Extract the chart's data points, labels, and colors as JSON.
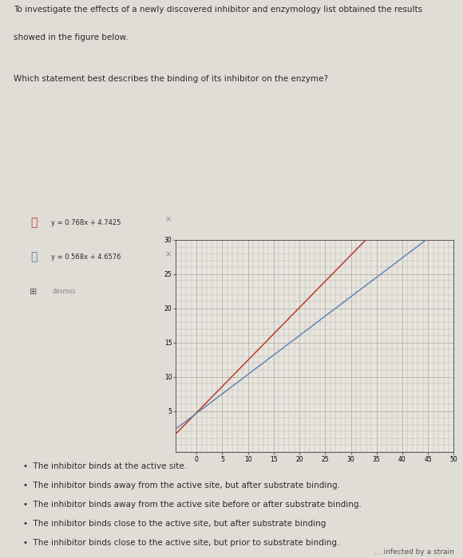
{
  "line1_label": "y = 0.768x + 4.7425",
  "line1_slope": 0.768,
  "line1_intercept": 4.7425,
  "line1_color": "#c0392b",
  "line2_label": "y = 0.568x + 4.6576",
  "line2_slope": 0.568,
  "line2_intercept": 4.6576,
  "line2_color": "#6688aa",
  "x_min": -4,
  "x_max": 50,
  "y_min": -1,
  "y_max": 30,
  "x_ticks": [
    0,
    5,
    10,
    15,
    20,
    25,
    30,
    35,
    40,
    45,
    50
  ],
  "y_ticks": [
    5,
    10,
    15,
    20,
    25,
    30
  ],
  "chart_bg": "#e8e5df",
  "grid_color": "#aaa8a0",
  "title_text1": "To investigate the effects of a newly discovered inhibitor and enzymology list obtained the results",
  "title_text2": "showed in the figure below.",
  "question_text": "Which statement best describes the binding of its inhibitor on the enzyme?",
  "bullet_points": [
    "The inhibitor binds at the active site.",
    "The inhibitor binds away from the active site, but after substrate binding.",
    "The inhibitor binds away from the active site before or after substrate binding.",
    "The inhibitor binds close to the active site, but after substrate binding",
    "The inhibitor binds close to the active site, but prior to substrate binding."
  ],
  "legend_bg": "#dedad2",
  "legend_icon1_color": "#c0392b",
  "legend_icon2_color": "#5577aa",
  "page_bg": "#e0ddd6",
  "text_color": "#2a2a2a",
  "bottom_note": "infected by a strain"
}
